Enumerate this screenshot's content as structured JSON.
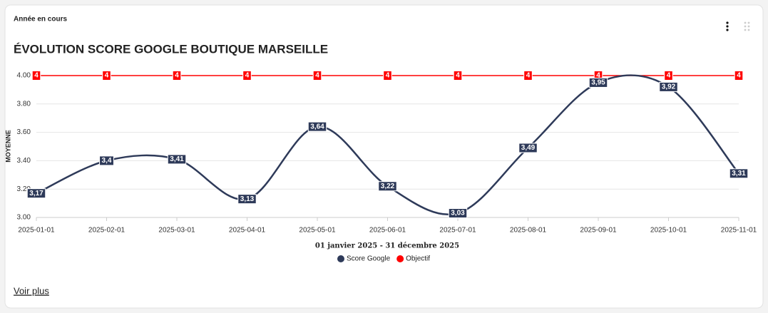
{
  "card": {
    "label": "Année en cours",
    "link": "Voir plus"
  },
  "chart_data": {
    "type": "line",
    "title": "ÉVOLUTION SCORE GOOGLE BOUTIQUE MARSEILLE",
    "ylabel": "MOYENNE",
    "xlabel": "01 janvier 2025 - 31 décembre 2025",
    "categories": [
      "2025-01-01",
      "2025-02-01",
      "2025-03-01",
      "2025-04-01",
      "2025-05-01",
      "2025-06-01",
      "2025-07-01",
      "2025-08-01",
      "2025-09-01",
      "2025-10-01",
      "2025-11-01"
    ],
    "series": [
      {
        "name": "Score Google",
        "color": "#2e3a59",
        "smooth": true,
        "values": [
          3.17,
          3.4,
          3.41,
          3.13,
          3.64,
          3.22,
          3.03,
          3.49,
          3.95,
          3.92,
          3.31
        ],
        "value_labels": [
          "3,17",
          "3,4",
          "3,41",
          "3,13",
          "3,64",
          "3,22",
          "3,03",
          "3,49",
          "3,95",
          "3,92",
          "3,31"
        ]
      },
      {
        "name": "Objectif",
        "color": "#ff0000",
        "smooth": false,
        "values": [
          4,
          4,
          4,
          4,
          4,
          4,
          4,
          4,
          4,
          4,
          4
        ]
      }
    ],
    "ylim": [
      3,
      4
    ],
    "yticks": [
      {
        "value": 3,
        "label": "3.00"
      },
      {
        "value": 3.2,
        "label": "3.20"
      },
      {
        "value": 3.4,
        "label": "3.40"
      },
      {
        "value": 3.6,
        "label": "3.60"
      },
      {
        "value": 3.8,
        "label": "3.80"
      },
      {
        "value": 4,
        "label": "4.00"
      }
    ],
    "grid": true
  }
}
